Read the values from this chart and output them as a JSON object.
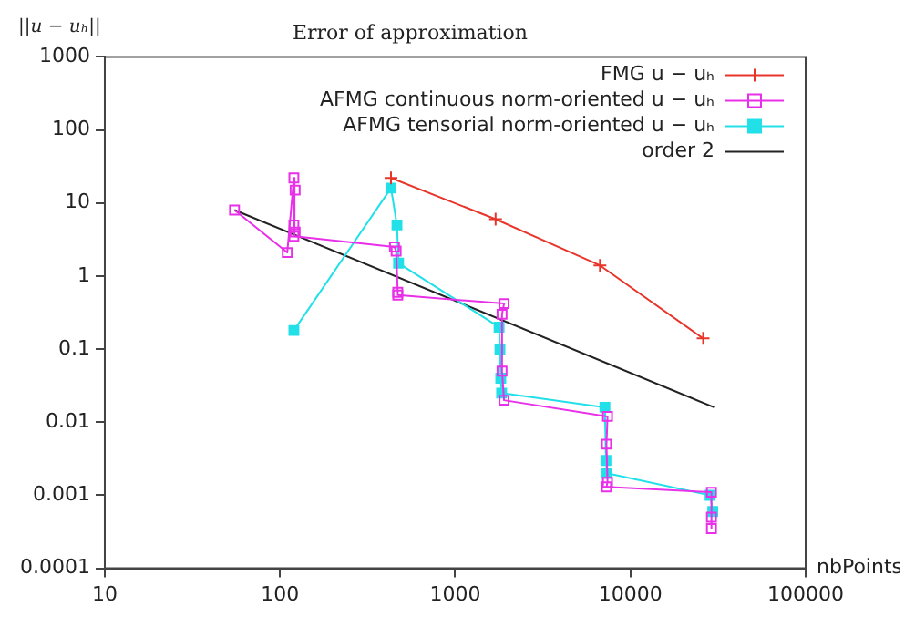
{
  "chart_data": {
    "type": "line",
    "title": "Error of approximation",
    "xlabel": "nbPoints",
    "ylabel": "||u − uₕ||",
    "log": "xy",
    "xlim": [
      10,
      100000
    ],
    "xticks": [
      10,
      100,
      1000,
      10000,
      100000
    ],
    "ylim": [
      0.0001,
      1000
    ],
    "yticks": [
      0.0001,
      0.001,
      0.01,
      0.1,
      1,
      10,
      100,
      1000
    ],
    "grid": false,
    "legend": "top right",
    "series": [
      {
        "name": "FMG u − uₕ",
        "color": "#e8352a",
        "marker": "cross",
        "x": [
          430,
          1700,
          6700,
          26000
        ],
        "values": [
          22,
          6,
          1.4,
          0.14
        ]
      },
      {
        "name": "AFMG continuous norm-oriented u − uₕ",
        "color": "#e830e8",
        "marker": "square",
        "x": [
          55,
          110,
          120,
          122,
          120,
          122,
          120,
          450,
          460,
          470,
          470,
          1900,
          1850,
          1850,
          1900,
          7400,
          7300,
          7400,
          7300,
          29000,
          29000,
          29000
        ],
        "values": [
          8,
          2.1,
          22,
          15,
          5,
          4,
          3.5,
          2.5,
          2.2,
          0.6,
          0.55,
          0.42,
          0.3,
          0.05,
          0.02,
          0.012,
          0.005,
          0.0015,
          0.0013,
          0.0011,
          0.0005,
          0.00035
        ]
      },
      {
        "name": "AFMG tensorial norm-oriented u − uₕ",
        "color": "#22e0e8",
        "marker": "square",
        "x": [
          120,
          430,
          465,
          475,
          1780,
          1800,
          1820,
          1840,
          7150,
          7250,
          7350,
          28500,
          29500
        ],
        "values": [
          0.18,
          16,
          5,
          1.5,
          0.2,
          0.1,
          0.04,
          0.025,
          0.016,
          0.003,
          0.002,
          0.001,
          0.0006
        ]
      },
      {
        "name": "order 2",
        "color": "#222222",
        "marker": "none",
        "x": [
          55,
          30000
        ],
        "values": [
          8,
          0.016
        ]
      }
    ]
  }
}
